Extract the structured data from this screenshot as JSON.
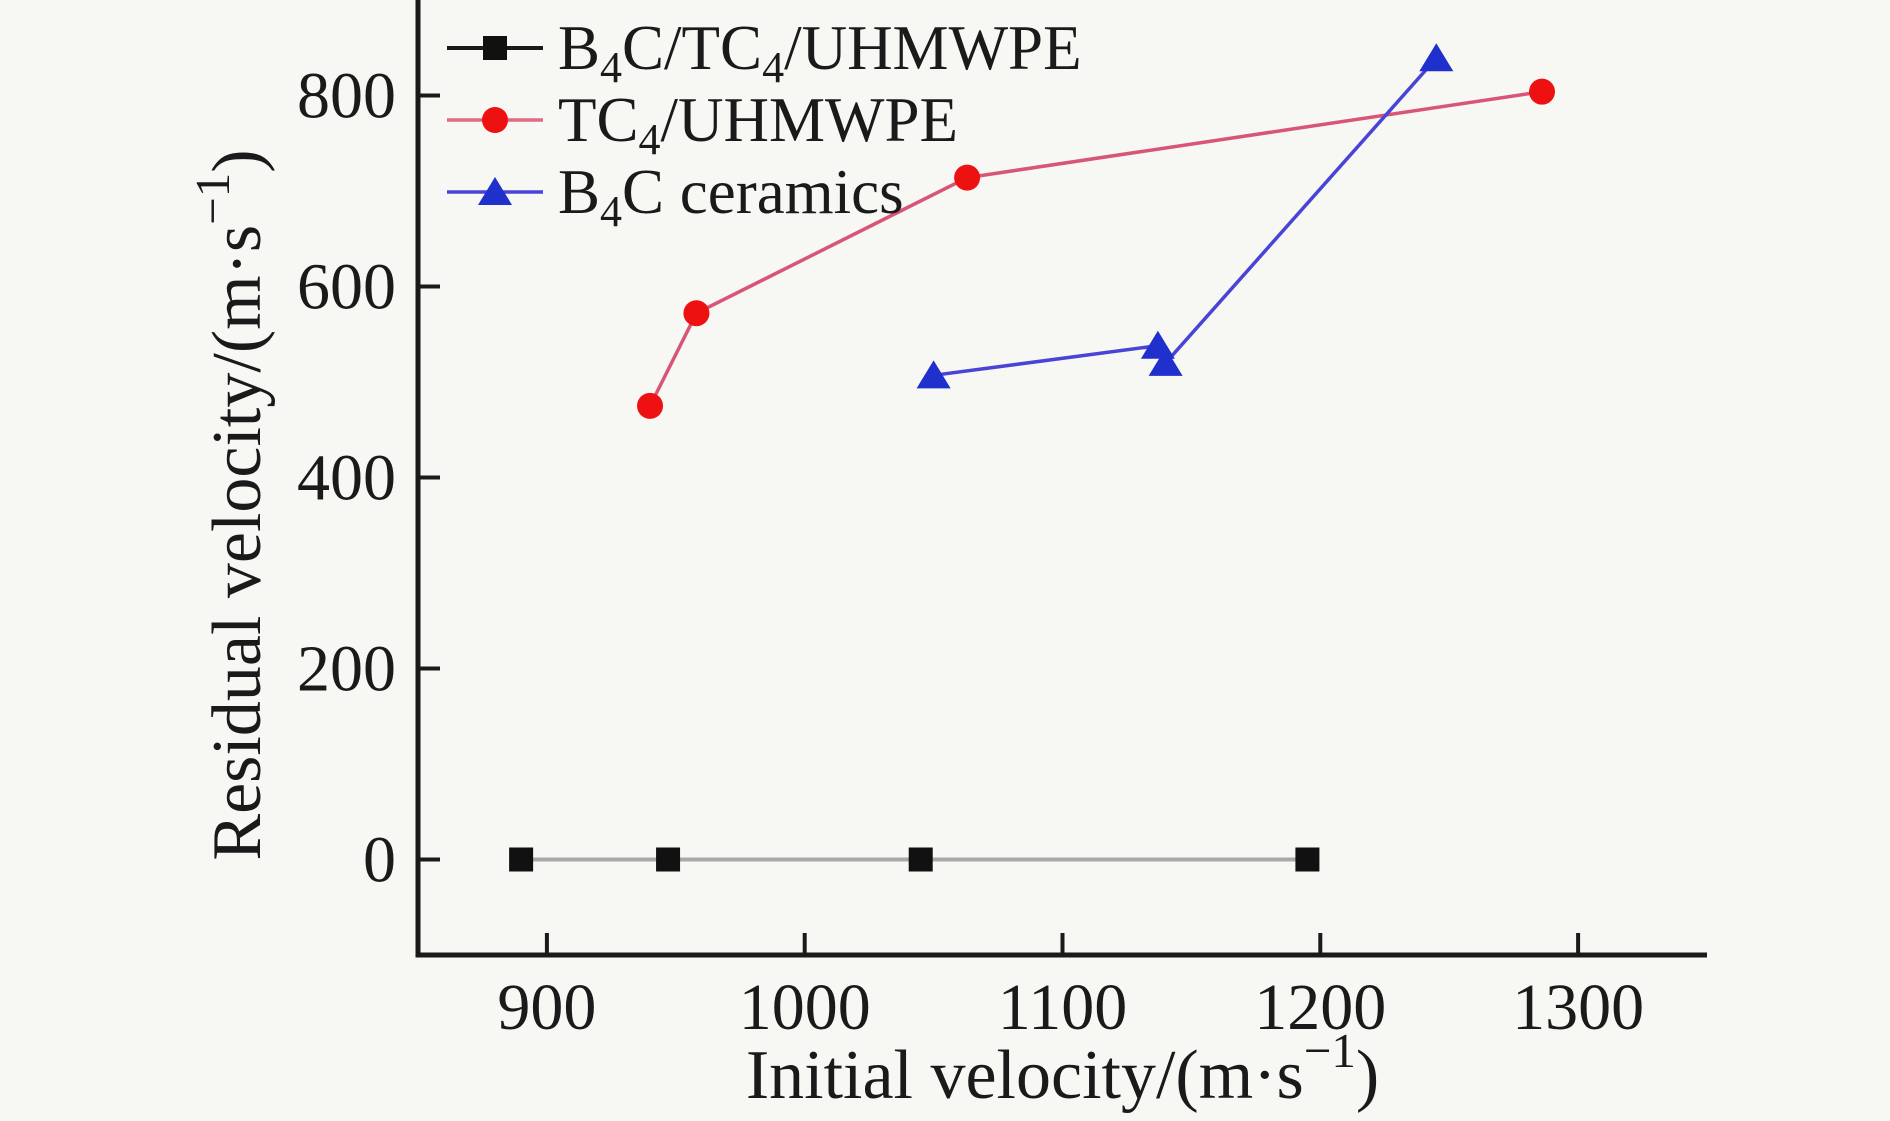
{
  "figure": {
    "background": "#f7f7f4",
    "axis_color": "#1a1a1a",
    "text_color": "#1a1a1a"
  },
  "chart_data": {
    "type": "line",
    "title": "",
    "xlabel": "Initial velocity/(m·s⁻¹)",
    "ylabel": "Residual velocity/(m·s⁻¹)",
    "xlabel_segments": [
      {
        "t": "Initial velocity/(m·s"
      },
      {
        "t": "−1",
        "sup": true
      },
      {
        "t": ")"
      }
    ],
    "ylabel_segments": [
      {
        "t": "Residual velocity/(m·s"
      },
      {
        "t": "−1",
        "sup": true
      },
      {
        "t": ")"
      }
    ],
    "xlim": [
      850,
      1350
    ],
    "ylim": [
      -100,
      900
    ],
    "x_ticks": [
      900,
      1000,
      1100,
      1200,
      1300
    ],
    "y_ticks": [
      0,
      200,
      400,
      600,
      800
    ],
    "grid": false,
    "legend_position": "top-left",
    "series": [
      {
        "name": "B4C/TC4/UHMWPE",
        "label_segments": [
          {
            "t": "B"
          },
          {
            "t": "4",
            "sub": true
          },
          {
            "t": "C/TC"
          },
          {
            "t": "4",
            "sub": true
          },
          {
            "t": "/UHMWPE"
          }
        ],
        "marker": "square",
        "marker_color": "#111111",
        "line_color": "#a9a9a9",
        "legend_line_color": "#1a1a1a",
        "line_width": 4,
        "points": [
          [
            890,
            0
          ],
          [
            947,
            0
          ],
          [
            1045,
            0
          ],
          [
            1195,
            0
          ]
        ]
      },
      {
        "name": "TC4/UHMWPE",
        "label_segments": [
          {
            "t": "TC"
          },
          {
            "t": "4",
            "sub": true
          },
          {
            "t": "/UHMWPE"
          }
        ],
        "marker": "circle",
        "marker_color": "#ee1111",
        "line_color": "#d85575",
        "legend_line_color": "#e06a84",
        "line_width": 3.5,
        "points": [
          [
            940,
            475
          ],
          [
            958,
            572
          ],
          [
            1063,
            714
          ],
          [
            1286,
            804
          ]
        ]
      },
      {
        "name": "B4C ceramics",
        "label_segments": [
          {
            "t": "B"
          },
          {
            "t": "4",
            "sub": true
          },
          {
            "t": "C ceramics"
          }
        ],
        "marker": "triangle",
        "marker_color": "#2030cc",
        "legend_line_color": "#4a44d6",
        "line_color": "#4a44d6",
        "line_width": 3.5,
        "points": [
          [
            1050,
            507
          ],
          [
            1137,
            538
          ],
          [
            1140,
            520
          ],
          [
            1245,
            839
          ]
        ]
      }
    ]
  }
}
